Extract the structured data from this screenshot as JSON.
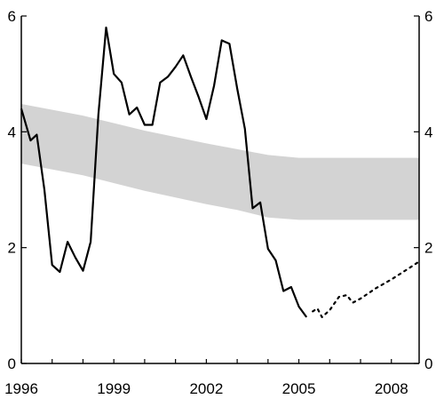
{
  "chart_data": {
    "type": "line",
    "title": "",
    "xlabel": "",
    "ylabel": "",
    "xlim": [
      1996,
      2008.9
    ],
    "ylim": [
      0,
      6
    ],
    "x_ticks": [
      {
        "value": 1996,
        "label": "1996"
      },
      {
        "value": 1999,
        "label": "1999"
      },
      {
        "value": 2002,
        "label": "2002"
      },
      {
        "value": 2005,
        "label": "2005"
      },
      {
        "value": 2008,
        "label": "2008"
      }
    ],
    "y_ticks": [
      {
        "value": 0,
        "label": "0"
      },
      {
        "value": 2,
        "label": "2"
      },
      {
        "value": 4,
        "label": "4"
      },
      {
        "value": 6,
        "label": "6"
      }
    ],
    "right_axis": true,
    "grid": false,
    "legend": "none",
    "colors": {
      "band": "#d3d3d3",
      "line": "#000000",
      "axis": "#000000"
    },
    "band": {
      "x": [
        1996,
        1998,
        2000,
        2002,
        2003,
        2004,
        2005,
        2008.9
      ],
      "lower": [
        3.45,
        3.25,
        2.98,
        2.75,
        2.65,
        2.52,
        2.48,
        2.48
      ],
      "upper": [
        4.48,
        4.28,
        4.02,
        3.8,
        3.7,
        3.6,
        3.55,
        3.55
      ]
    },
    "series": [
      {
        "style": "solid",
        "x": [
          1996.0,
          1996.3,
          1996.5,
          1996.75,
          1997.0,
          1997.25,
          1997.5,
          1997.75,
          1998.0,
          1998.25,
          1998.5,
          1998.75,
          1999.0,
          1999.25,
          1999.5,
          1999.75,
          2000.0,
          2000.25,
          2000.5,
          2000.75,
          2001.0,
          2001.25,
          2001.5,
          2001.75,
          2002.0,
          2002.25,
          2002.5,
          2002.75,
          2003.0,
          2003.25,
          2003.5,
          2003.75,
          2004.0,
          2004.25,
          2004.5,
          2004.75,
          2005.0,
          2005.25
        ],
        "y": [
          4.4,
          3.85,
          3.95,
          3.0,
          1.7,
          1.58,
          2.1,
          1.83,
          1.6,
          2.1,
          4.3,
          5.8,
          5.0,
          4.85,
          4.3,
          4.42,
          4.12,
          4.12,
          4.85,
          4.95,
          5.12,
          5.32,
          4.95,
          4.6,
          4.22,
          4.8,
          5.58,
          5.52,
          4.75,
          4.05,
          2.68,
          2.78,
          1.98,
          1.78,
          1.25,
          1.32,
          0.98,
          0.8
        ]
      },
      {
        "style": "dotted",
        "x": [
          2005.45,
          2005.6,
          2005.75,
          2006.0,
          2006.3,
          2006.55,
          2006.75,
          2007.0,
          2007.5,
          2008.0,
          2008.5,
          2008.9
        ],
        "y": [
          0.9,
          0.95,
          0.8,
          0.92,
          1.15,
          1.18,
          1.05,
          1.12,
          1.3,
          1.45,
          1.62,
          1.76
        ]
      }
    ]
  }
}
